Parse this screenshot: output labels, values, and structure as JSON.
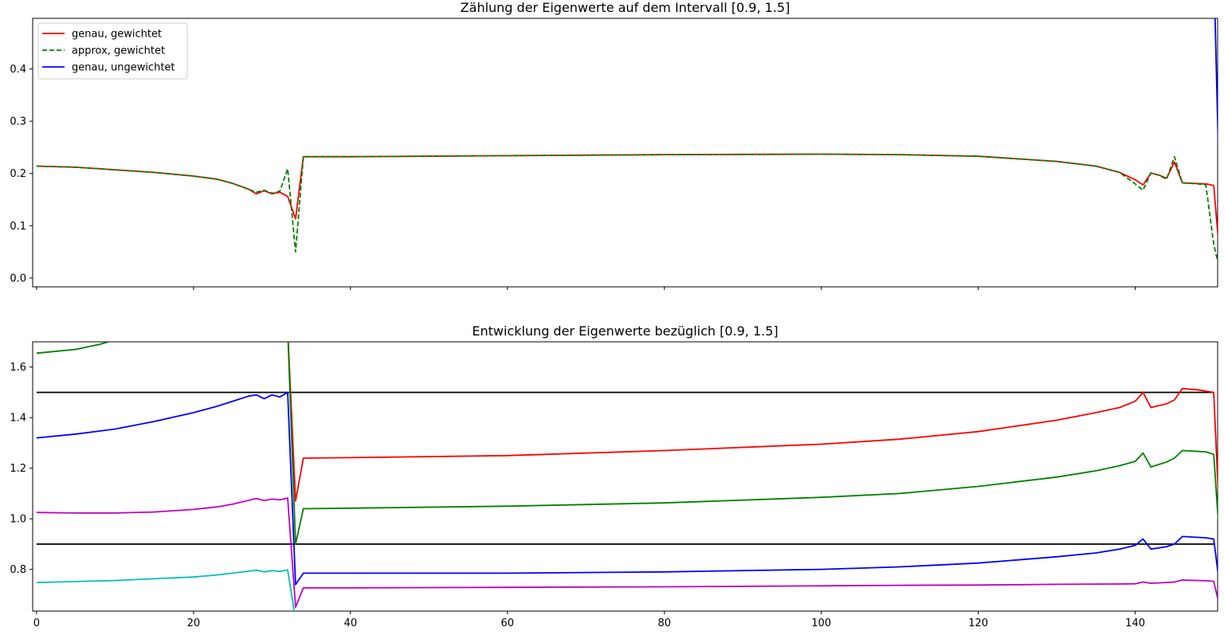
{
  "chart_data": [
    {
      "type": "line",
      "title": "Zählung der Eigenwerte auf dem Intervall [0.9, 1.5]",
      "xlabel": "",
      "ylabel": "",
      "xlim": [
        -0.5,
        150.5
      ],
      "ylim": [
        -0.017,
        0.497
      ],
      "yticks": [
        0.0,
        0.1,
        0.2,
        0.3,
        0.4
      ],
      "ytick_labels": [
        "0.0",
        "0.1",
        "0.2",
        "0.3",
        "0.4"
      ],
      "xticks": [
        0,
        20,
        40,
        60,
        80,
        100,
        120,
        140
      ],
      "xtick_labels_visible": false,
      "grid": false,
      "legend": "top-left",
      "series": [
        {
          "name": "genau, gewichtet",
          "color": "#ff0000",
          "style": "solid",
          "points": [
            [
              0,
              0.214
            ],
            [
              5,
              0.212
            ],
            [
              10,
              0.207
            ],
            [
              15,
              0.202
            ],
            [
              20,
              0.195
            ],
            [
              23,
              0.189
            ],
            [
              25,
              0.181
            ],
            [
              27,
              0.17
            ],
            [
              28,
              0.161
            ],
            [
              29,
              0.167
            ],
            [
              30,
              0.161
            ],
            [
              31,
              0.164
            ],
            [
              32,
              0.156
            ],
            [
              33,
              0.113
            ],
            [
              34,
              0.232
            ],
            [
              40,
              0.232
            ],
            [
              60,
              0.234
            ],
            [
              80,
              0.236
            ],
            [
              100,
              0.237
            ],
            [
              110,
              0.236
            ],
            [
              120,
              0.233
            ],
            [
              130,
              0.223
            ],
            [
              135,
              0.214
            ],
            [
              138,
              0.202
            ],
            [
              140,
              0.188
            ],
            [
              141,
              0.178
            ],
            [
              142,
              0.201
            ],
            [
              143,
              0.197
            ],
            [
              144,
              0.191
            ],
            [
              145,
              0.222
            ],
            [
              146,
              0.182
            ],
            [
              149,
              0.18
            ],
            [
              150,
              0.177
            ],
            [
              151,
              0.0
            ]
          ]
        },
        {
          "name": "approx, gewichtet",
          "color": "#008000",
          "style": "dashed",
          "points": [
            [
              0,
              0.214
            ],
            [
              5,
              0.212
            ],
            [
              10,
              0.207
            ],
            [
              15,
              0.202
            ],
            [
              20,
              0.195
            ],
            [
              23,
              0.189
            ],
            [
              25,
              0.181
            ],
            [
              27,
              0.17
            ],
            [
              28,
              0.164
            ],
            [
              29,
              0.168
            ],
            [
              30,
              0.162
            ],
            [
              31,
              0.166
            ],
            [
              32,
              0.209
            ],
            [
              33,
              0.05
            ],
            [
              34,
              0.232
            ],
            [
              40,
              0.232
            ],
            [
              60,
              0.234
            ],
            [
              80,
              0.236
            ],
            [
              100,
              0.237
            ],
            [
              110,
              0.236
            ],
            [
              120,
              0.233
            ],
            [
              130,
              0.223
            ],
            [
              135,
              0.214
            ],
            [
              138,
              0.202
            ],
            [
              140,
              0.18
            ],
            [
              141,
              0.168
            ],
            [
              142,
              0.201
            ],
            [
              143,
              0.197
            ],
            [
              144,
              0.189
            ],
            [
              145,
              0.232
            ],
            [
              146,
              0.182
            ],
            [
              148,
              0.18
            ],
            [
              149,
              0.178
            ],
            [
              150,
              0.065
            ],
            [
              151,
              0.0
            ]
          ]
        },
        {
          "name": "genau, ungewichtet",
          "color": "#0000ff",
          "style": "solid",
          "points": [
            [
              150,
              0.6
            ],
            [
              151,
              0.0
            ]
          ]
        }
      ]
    },
    {
      "type": "line",
      "title": "Entwicklung der Eigenwerte bezüglich [0.9, 1.5]",
      "xlabel": "",
      "ylabel": "",
      "xlim": [
        -0.5,
        150.5
      ],
      "ylim": [
        0.635,
        1.7
      ],
      "yticks": [
        0.8,
        1.0,
        1.2,
        1.4,
        1.6
      ],
      "ytick_labels": [
        "0.8",
        "1.0",
        "1.2",
        "1.4",
        "1.6"
      ],
      "xticks": [
        0,
        20,
        40,
        60,
        80,
        100,
        120,
        140
      ],
      "xtick_labels": [
        "0",
        "20",
        "40",
        "60",
        "80",
        "100",
        "120",
        "140"
      ],
      "grid": false,
      "hlines": [
        {
          "y": 1.5,
          "color": "#000000"
        },
        {
          "y": 0.9,
          "color": "#000000"
        }
      ],
      "series": [
        {
          "color": "#ff0000",
          "style": "solid",
          "points": [
            [
              32,
              1.75
            ],
            [
              33,
              1.07
            ],
            [
              34,
              1.24
            ],
            [
              40,
              1.242
            ],
            [
              60,
              1.25
            ],
            [
              80,
              1.27
            ],
            [
              100,
              1.295
            ],
            [
              110,
              1.315
            ],
            [
              120,
              1.345
            ],
            [
              130,
              1.39
            ],
            [
              135,
              1.42
            ],
            [
              138,
              1.44
            ],
            [
              140,
              1.465
            ],
            [
              141,
              1.5
            ],
            [
              142,
              1.44
            ],
            [
              144,
              1.455
            ],
            [
              145,
              1.47
            ],
            [
              146,
              1.515
            ],
            [
              148,
              1.51
            ],
            [
              149,
              1.505
            ],
            [
              150,
              1.5
            ],
            [
              151,
              0.81
            ]
          ]
        },
        {
          "color": "#008000",
          "style": "solid",
          "points": [
            [
              0,
              1.655
            ],
            [
              5,
              1.67
            ],
            [
              8,
              1.69
            ],
            [
              9.2,
              1.7
            ]
          ]
        },
        {
          "color": "#008000",
          "style": "solid",
          "points": [
            [
              32,
              1.75
            ],
            [
              33,
              0.9
            ],
            [
              34,
              1.04
            ],
            [
              40,
              1.042
            ],
            [
              60,
              1.05
            ],
            [
              80,
              1.063
            ],
            [
              100,
              1.085
            ],
            [
              110,
              1.1
            ],
            [
              120,
              1.128
            ],
            [
              130,
              1.165
            ],
            [
              135,
              1.19
            ],
            [
              138,
              1.21
            ],
            [
              140,
              1.227
            ],
            [
              141,
              1.26
            ],
            [
              142,
              1.205
            ],
            [
              144,
              1.225
            ],
            [
              145,
              1.24
            ],
            [
              146,
              1.27
            ],
            [
              149,
              1.265
            ],
            [
              150,
              1.255
            ],
            [
              151,
              0.8
            ]
          ]
        },
        {
          "color": "#0000ff",
          "style": "solid",
          "points": [
            [
              0,
              1.32
            ],
            [
              5,
              1.335
            ],
            [
              10,
              1.355
            ],
            [
              15,
              1.385
            ],
            [
              20,
              1.42
            ],
            [
              23,
              1.445
            ],
            [
              25,
              1.465
            ],
            [
              27,
              1.485
            ],
            [
              28,
              1.49
            ],
            [
              29,
              1.475
            ],
            [
              30,
              1.49
            ],
            [
              31,
              1.482
            ],
            [
              32,
              1.5
            ],
            [
              33,
              0.74
            ],
            [
              34,
              0.785
            ],
            [
              40,
              0.785
            ],
            [
              60,
              0.785
            ],
            [
              80,
              0.79
            ],
            [
              100,
              0.8
            ],
            [
              110,
              0.81
            ],
            [
              120,
              0.825
            ],
            [
              130,
              0.85
            ],
            [
              135,
              0.865
            ],
            [
              138,
              0.88
            ],
            [
              140,
              0.895
            ],
            [
              141,
              0.92
            ],
            [
              142,
              0.88
            ],
            [
              144,
              0.89
            ],
            [
              145,
              0.9
            ],
            [
              146,
              0.93
            ],
            [
              149,
              0.925
            ],
            [
              150,
              0.92
            ],
            [
              151,
              0.675
            ]
          ]
        },
        {
          "color": "#bf00bf",
          "style": "solid",
          "points": [
            [
              0,
              1.025
            ],
            [
              5,
              1.023
            ],
            [
              10,
              1.023
            ],
            [
              15,
              1.027
            ],
            [
              20,
              1.037
            ],
            [
              23,
              1.047
            ],
            [
              25,
              1.058
            ],
            [
              27,
              1.073
            ],
            [
              28,
              1.08
            ],
            [
              29,
              1.072
            ],
            [
              30,
              1.078
            ],
            [
              31,
              1.075
            ],
            [
              32,
              1.082
            ],
            [
              33,
              0.65
            ],
            [
              34,
              0.727
            ],
            [
              40,
              0.727
            ],
            [
              60,
              0.729
            ],
            [
              80,
              0.731
            ],
            [
              100,
              0.735
            ],
            [
              110,
              0.737
            ],
            [
              120,
              0.738
            ],
            [
              130,
              0.741
            ],
            [
              138,
              0.742
            ],
            [
              140,
              0.743
            ],
            [
              141,
              0.75
            ],
            [
              142,
              0.745
            ],
            [
              144,
              0.748
            ],
            [
              145,
              0.75
            ],
            [
              146,
              0.758
            ],
            [
              149,
              0.755
            ],
            [
              150,
              0.753
            ],
            [
              151,
              0.62
            ]
          ]
        },
        {
          "color": "#00bfbf",
          "style": "solid",
          "points": [
            [
              0,
              0.748
            ],
            [
              5,
              0.752
            ],
            [
              10,
              0.756
            ],
            [
              15,
              0.763
            ],
            [
              20,
              0.77
            ],
            [
              23,
              0.778
            ],
            [
              25,
              0.785
            ],
            [
              27,
              0.793
            ],
            [
              28,
              0.797
            ],
            [
              29,
              0.79
            ],
            [
              30,
              0.795
            ],
            [
              31,
              0.792
            ],
            [
              32,
              0.798
            ],
            [
              33,
              0.6
            ]
          ]
        }
      ]
    }
  ]
}
